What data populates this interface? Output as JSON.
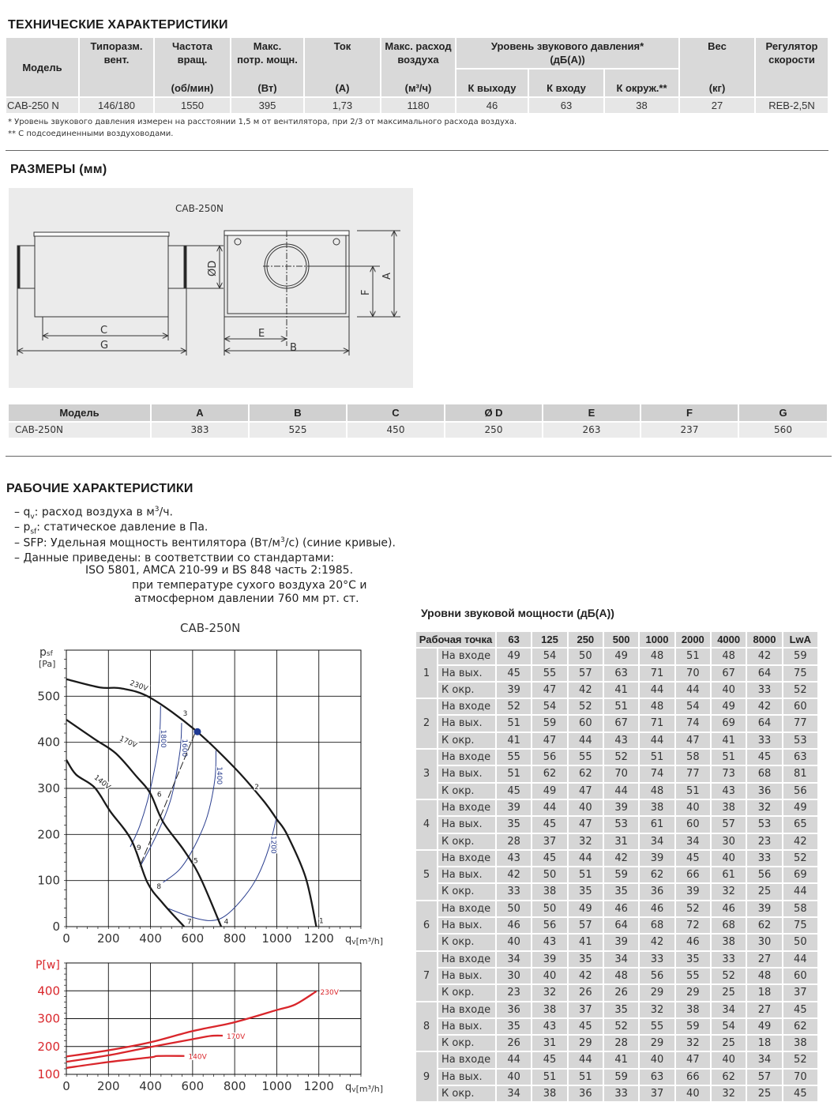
{
  "tech": {
    "title": "ТЕХНИЧЕСКИЕ ХАРАКТЕРИСТИКИ",
    "columns": [
      {
        "label": "Модель",
        "unit": ""
      },
      {
        "label": "Типоразм.\nвент.",
        "unit": ""
      },
      {
        "label": "Частота\nвращ.",
        "unit": "(об/мин)"
      },
      {
        "label": "Макс.\nпотр. мощн.",
        "unit": "(Вт)"
      },
      {
        "label": "Ток",
        "unit": "(А)"
      },
      {
        "label": "Макс. расход\nвоздуха",
        "unit": "(м³/ч)"
      }
    ],
    "sound_group": "Уровень звукового давления*\n(дБ(А))",
    "sound_sub": [
      "К выходу",
      "К входу",
      "К окруж.**"
    ],
    "weight": {
      "label": "Вес",
      "unit": "(кг)"
    },
    "regulator": "Регулятор\nскорости",
    "row": [
      "CAB-250 N",
      "146/180",
      "1550",
      "395",
      "1,73",
      "1180",
      "46",
      "63",
      "38",
      "27",
      "REB-2,5N"
    ],
    "footnotes": [
      "* Уровень звукового давления измерен на расстоянии 1,5 м от вентилятора, при 2/3 от максимального расхода воздуха.",
      "** С подсоединенными воздуховодами."
    ]
  },
  "dimensions": {
    "title": "РАЗМЕРЫ (мм)",
    "drawing_title": "CAB-250N",
    "drawing_labels": {
      "C": "C",
      "G": "G",
      "D": "ØD",
      "E": "E",
      "B": "B",
      "F": "F",
      "A": "A"
    },
    "headers": [
      "Модель",
      "A",
      "B",
      "C",
      "Ø D",
      "E",
      "F",
      "G"
    ],
    "row": [
      "CAB-250N",
      "383",
      "525",
      "450",
      "250",
      "263",
      "237",
      "560"
    ]
  },
  "performance": {
    "title": "РАБОЧИЕ ХАРАКТЕРИСТИКИ",
    "bullets": [
      {
        "pre": "– q",
        "sub": "v",
        "post": ": расход воздуха в м",
        "sup": "3",
        "tail": "/ч."
      },
      {
        "pre": "– p",
        "sub": "sf",
        "post": ": статическое давление в Па.",
        "sup": "",
        "tail": ""
      },
      {
        "pre": "– SFP: Удельная мощность вентилятора (Вт/м",
        "sub": "",
        "post": "",
        "sup": "3",
        "tail": "/с) (синие кривые)."
      },
      {
        "pre": "– Данные приведены: в соответствии со стандартами:",
        "sub": "",
        "post": "",
        "sup": "",
        "tail": ""
      }
    ],
    "notes": [
      "ISO 5801, AMCA 210-99 и BS 848 часть 2:1985.",
      "при температуре сухого воздуха 20°C и",
      "атмосферном давлении 760 мм рт. ст."
    ]
  },
  "sound": {
    "title": "Уровни звуковой мощности (дБ(А))",
    "header": [
      "Рабочая точка",
      "63",
      "125",
      "250",
      "500",
      "1000",
      "2000",
      "4000",
      "8000",
      "LwA"
    ],
    "points": [
      {
        "n": "1",
        "rows": [
          {
            "label": "На входе",
            "values": [
              "49",
              "54",
              "50",
              "49",
              "48",
              "51",
              "48",
              "42",
              "59"
            ]
          },
          {
            "label": "На вых.",
            "values": [
              "45",
              "55",
              "57",
              "63",
              "71",
              "70",
              "67",
              "64",
              "75"
            ]
          },
          {
            "label": "К окр.",
            "values": [
              "39",
              "47",
              "42",
              "41",
              "44",
              "44",
              "40",
              "33",
              "52"
            ]
          }
        ]
      },
      {
        "n": "2",
        "rows": [
          {
            "label": "На входе",
            "values": [
              "52",
              "54",
              "52",
              "51",
              "48",
              "54",
              "49",
              "42",
              "60"
            ]
          },
          {
            "label": "На вых.",
            "values": [
              "51",
              "59",
              "60",
              "67",
              "71",
              "74",
              "69",
              "64",
              "77"
            ]
          },
          {
            "label": "К окр.",
            "values": [
              "41",
              "47",
              "44",
              "43",
              "44",
              "47",
              "41",
              "33",
              "53"
            ]
          }
        ]
      },
      {
        "n": "3",
        "rows": [
          {
            "label": "На входе",
            "values": [
              "55",
              "56",
              "55",
              "52",
              "51",
              "58",
              "51",
              "45",
              "63"
            ]
          },
          {
            "label": "На вых.",
            "values": [
              "51",
              "62",
              "62",
              "70",
              "74",
              "77",
              "73",
              "68",
              "81"
            ]
          },
          {
            "label": "К окр.",
            "values": [
              "45",
              "49",
              "47",
              "44",
              "48",
              "51",
              "43",
              "36",
              "56"
            ]
          }
        ]
      },
      {
        "n": "4",
        "rows": [
          {
            "label": "На входе",
            "values": [
              "39",
              "44",
              "40",
              "39",
              "38",
              "40",
              "38",
              "32",
              "49"
            ]
          },
          {
            "label": "На вых.",
            "values": [
              "35",
              "45",
              "47",
              "53",
              "61",
              "60",
              "57",
              "53",
              "65"
            ]
          },
          {
            "label": "К окр.",
            "values": [
              "28",
              "37",
              "32",
              "31",
              "34",
              "34",
              "30",
              "23",
              "42"
            ]
          }
        ]
      },
      {
        "n": "5",
        "rows": [
          {
            "label": "На входе",
            "values": [
              "43",
              "45",
              "44",
              "42",
              "39",
              "45",
              "40",
              "33",
              "52"
            ]
          },
          {
            "label": "На вых.",
            "values": [
              "42",
              "50",
              "51",
              "59",
              "62",
              "66",
              "61",
              "56",
              "69"
            ]
          },
          {
            "label": "К окр.",
            "values": [
              "33",
              "38",
              "35",
              "35",
              "36",
              "39",
              "32",
              "25",
              "44"
            ]
          }
        ]
      },
      {
        "n": "6",
        "rows": [
          {
            "label": "На входе",
            "values": [
              "50",
              "50",
              "49",
              "46",
              "46",
              "52",
              "46",
              "39",
              "58"
            ]
          },
          {
            "label": "На вых.",
            "values": [
              "46",
              "56",
              "57",
              "64",
              "68",
              "72",
              "68",
              "62",
              "75"
            ]
          },
          {
            "label": "К окр.",
            "values": [
              "40",
              "43",
              "41",
              "39",
              "42",
              "46",
              "38",
              "30",
              "50"
            ]
          }
        ]
      },
      {
        "n": "7",
        "rows": [
          {
            "label": "На входе",
            "values": [
              "34",
              "39",
              "35",
              "34",
              "33",
              "35",
              "33",
              "27",
              "44"
            ]
          },
          {
            "label": "На вых.",
            "values": [
              "30",
              "40",
              "42",
              "48",
              "56",
              "55",
              "52",
              "48",
              "60"
            ]
          },
          {
            "label": "К окр.",
            "values": [
              "23",
              "32",
              "26",
              "26",
              "29",
              "29",
              "25",
              "18",
              "37"
            ]
          }
        ]
      },
      {
        "n": "8",
        "rows": [
          {
            "label": "На входе",
            "values": [
              "36",
              "38",
              "37",
              "35",
              "32",
              "38",
              "34",
              "27",
              "45"
            ]
          },
          {
            "label": "На вых.",
            "values": [
              "35",
              "43",
              "45",
              "52",
              "55",
              "59",
              "54",
              "49",
              "62"
            ]
          },
          {
            "label": "К окр.",
            "values": [
              "26",
              "31",
              "29",
              "28",
              "29",
              "32",
              "25",
              "18",
              "38"
            ]
          }
        ]
      },
      {
        "n": "9",
        "rows": [
          {
            "label": "На входе",
            "values": [
              "44",
              "45",
              "44",
              "41",
              "40",
              "47",
              "40",
              "34",
              "52"
            ]
          },
          {
            "label": "На вых.",
            "values": [
              "40",
              "51",
              "51",
              "59",
              "63",
              "66",
              "62",
              "57",
              "70"
            ]
          },
          {
            "label": "К окр.",
            "values": [
              "34",
              "38",
              "36",
              "33",
              "37",
              "40",
              "32",
              "25",
              "45"
            ]
          }
        ]
      }
    ]
  },
  "chart_data": [
    {
      "type": "line",
      "title": "CAB-250N",
      "ylabel_main": "p",
      "ylabel_sub": "sf",
      "ylabel_unit": "[Pa]",
      "xlabel_main": "q",
      "xlabel_sub": "v",
      "xlabel_unit": "[m³/h]",
      "xlim": [
        0,
        1400
      ],
      "ylim": [
        0,
        600
      ],
      "xticks": [
        "0",
        "200",
        "400",
        "600",
        "800",
        "1000",
        "1200"
      ],
      "yticks": [
        "0",
        "100",
        "200",
        "300",
        "400",
        "500"
      ],
      "grid": true,
      "colors": {
        "fan_curve": "#1a1a1a",
        "sfp_curve": "#2b3f8f",
        "operating_point": "#1f3a93"
      },
      "series": [
        {
          "name": "230V",
          "points": [
            [
              0,
              537
            ],
            [
              160,
              519
            ],
            [
              260,
              517
            ],
            [
              398,
              497
            ],
            [
              611,
              427
            ],
            [
              799,
              345
            ],
            [
              937,
              273
            ],
            [
              1000,
              233
            ],
            [
              1050,
              199
            ],
            [
              1137,
              107
            ],
            [
              1188,
              0
            ]
          ]
        },
        {
          "name": "170V",
          "points": [
            [
              0,
              449
            ],
            [
              134,
              407
            ],
            [
              235,
              376
            ],
            [
              335,
              325
            ],
            [
              398,
              290
            ],
            [
              460,
              227
            ],
            [
              560,
              165
            ],
            [
              636,
              107
            ],
            [
              736,
              0
            ]
          ]
        },
        {
          "name": "140V",
          "points": [
            [
              0,
              362
            ],
            [
              46,
              330
            ],
            [
              134,
              302
            ],
            [
              209,
              250
            ],
            [
              310,
              187
            ],
            [
              385,
              96
            ],
            [
              460,
              50
            ],
            [
              560,
              0
            ]
          ]
        }
      ],
      "sfp_curves": [
        {
          "name": "1800",
          "points": [
            [
              448,
              479
            ],
            [
              440,
              400
            ],
            [
              398,
              296
            ],
            [
              350,
              220
            ],
            [
              304,
              173
            ]
          ]
        },
        {
          "name": "1600",
          "points": [
            [
              548,
              442
            ],
            [
              540,
              380
            ],
            [
              498,
              279
            ],
            [
              430,
              200
            ],
            [
              354,
              133
            ]
          ]
        },
        {
          "name": "1400",
          "points": [
            [
              711,
              382
            ],
            [
              706,
              320
            ],
            [
              670,
              240
            ],
            [
              611,
              176
            ],
            [
              540,
              125
            ],
            [
              460,
              96
            ]
          ]
        },
        {
          "name": "1200",
          "points": [
            [
              1000,
              239
            ],
            [
              962,
              170
            ],
            [
              910,
              110
            ],
            [
              849,
              67
            ],
            [
              760,
              25
            ],
            [
              686,
              13
            ],
            [
              586,
              22
            ],
            [
              486,
              39
            ]
          ]
        }
      ],
      "duct_line": [
        [
          611,
          419
        ],
        [
          348,
          130
        ]
      ],
      "operating_point": [
        623,
        423
      ],
      "point_labels": [
        {
          "label": "1",
          "x": 1212,
          "y": 8
        },
        {
          "label": "2",
          "x": 905,
          "y": 298
        },
        {
          "label": "3",
          "x": 565,
          "y": 458
        },
        {
          "label": "4",
          "x": 760,
          "y": 6
        },
        {
          "label": "5",
          "x": 615,
          "y": 138
        },
        {
          "label": "6",
          "x": 442,
          "y": 282
        },
        {
          "label": "7",
          "x": 585,
          "y": 6
        },
        {
          "label": "8",
          "x": 440,
          "y": 82
        },
        {
          "label": "9",
          "x": 345,
          "y": 166
        }
      ]
    },
    {
      "type": "line",
      "ylabel": "P[w]",
      "xlabel_main": "q",
      "xlabel_sub": "v",
      "xlabel_unit": "[m³/h]",
      "xlim": [
        0,
        1400
      ],
      "ylim": [
        100,
        500
      ],
      "xticks": [
        "0",
        "200",
        "400",
        "600",
        "800",
        "1000",
        "1200"
      ],
      "yticks": [
        "100",
        "200",
        "300",
        "400"
      ],
      "grid": true,
      "colors": {
        "power_curve": "#d9262b",
        "axis_text": "#d9262b"
      },
      "series": [
        {
          "name": "230V",
          "points": [
            [
              0,
              164
            ],
            [
              197,
              186
            ],
            [
              398,
              215
            ],
            [
              598,
              255
            ],
            [
              799,
              287
            ],
            [
              1000,
              331
            ],
            [
              1088,
              351
            ],
            [
              1188,
              398
            ]
          ]
        },
        {
          "name": "170V",
          "points": [
            [
              0,
              145
            ],
            [
              197,
              168
            ],
            [
              398,
              198
            ],
            [
              598,
              226
            ],
            [
              686,
              238
            ],
            [
              743,
              239
            ]
          ]
        },
        {
          "name": "140V",
          "points": [
            [
              0,
              123
            ],
            [
              197,
              144
            ],
            [
              398,
              161
            ],
            [
              436,
              166
            ],
            [
              561,
              166
            ]
          ]
        }
      ]
    }
  ]
}
